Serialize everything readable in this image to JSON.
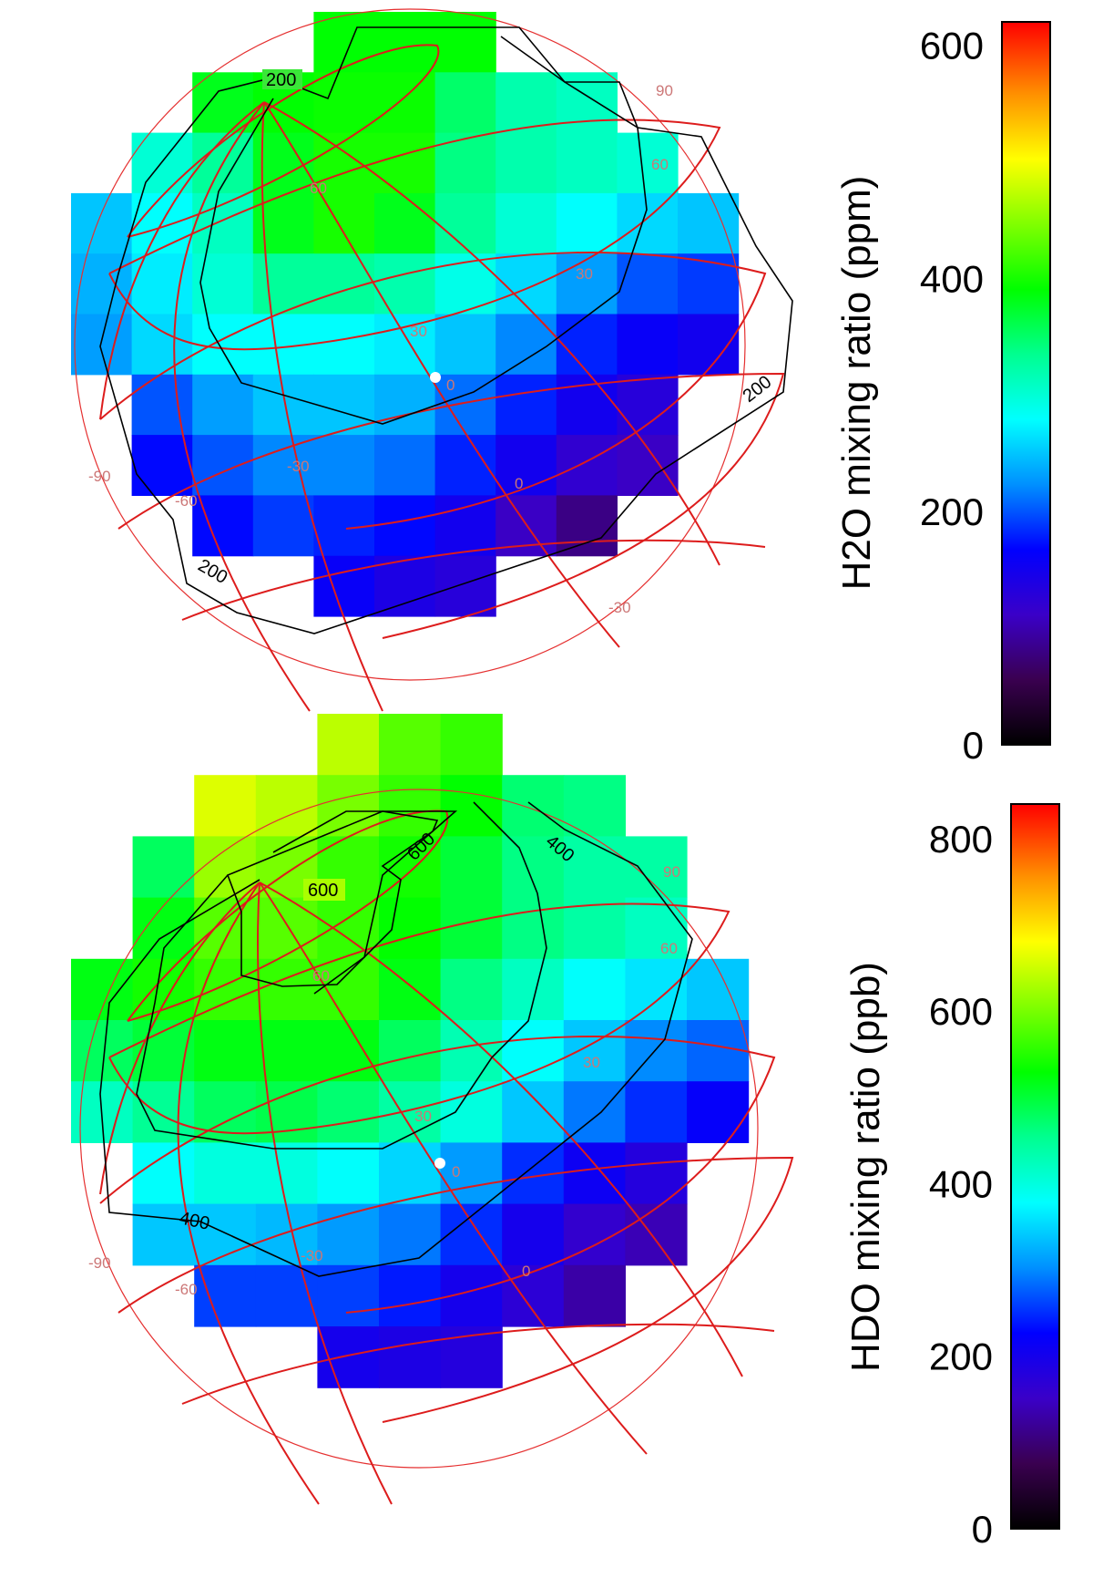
{
  "chart_data": [
    {
      "type": "heatmap",
      "colorbar_label": "H2O mixing ratio (ppm)",
      "colorbar_range": [
        0,
        620
      ],
      "colorbar_ticks": [
        "0",
        "200",
        "400",
        "600"
      ],
      "colorbar_tick_values": [
        0,
        200,
        400,
        600
      ],
      "contour_levels": [
        200
      ],
      "contour_labels": [
        "200",
        "200",
        "200"
      ],
      "grid_labels": [
        "90",
        "60",
        "60",
        "30",
        "30",
        "0",
        "-30",
        "0",
        "-90",
        "-60",
        "-30"
      ],
      "rows": [
        [
          null,
          null,
          null,
          null,
          390,
          390,
          390,
          null,
          null,
          null,
          null
        ],
        [
          null,
          null,
          380,
          390,
          395,
          395,
          350,
          320,
          310,
          null,
          null
        ],
        [
          null,
          300,
          330,
          380,
          400,
          400,
          340,
          320,
          310,
          300,
          null
        ],
        [
          250,
          280,
          310,
          380,
          400,
          380,
          330,
          300,
          280,
          260,
          250
        ],
        [
          240,
          270,
          300,
          330,
          330,
          320,
          290,
          260,
          230,
          200,
          190
        ],
        [
          230,
          260,
          280,
          280,
          280,
          270,
          250,
          220,
          180,
          160,
          150
        ],
        [
          null,
          200,
          230,
          250,
          250,
          240,
          210,
          180,
          150,
          130,
          null
        ],
        [
          null,
          170,
          200,
          220,
          220,
          210,
          180,
          150,
          120,
          110,
          null
        ],
        [
          null,
          null,
          170,
          190,
          180,
          170,
          150,
          110,
          80,
          null,
          null
        ],
        [
          null,
          null,
          null,
          null,
          160,
          140,
          130,
          null,
          null,
          null,
          null
        ]
      ]
    },
    {
      "type": "heatmap",
      "colorbar_label": "HDO mixing ratio (ppb)",
      "colorbar_range": [
        0,
        840
      ],
      "colorbar_ticks": [
        "0",
        "200",
        "400",
        "600",
        "800"
      ],
      "colorbar_tick_values": [
        0,
        200,
        400,
        600,
        800
      ],
      "contour_levels": [
        400,
        600
      ],
      "contour_labels": [
        "600",
        "600",
        "400",
        "400"
      ],
      "grid_labels": [
        "90",
        "60",
        "60",
        "30",
        "30",
        "0",
        "-30",
        "0",
        "-90",
        "-60"
      ],
      "rows": [
        [
          null,
          null,
          null,
          null,
          640,
          580,
          560,
          null,
          null,
          null,
          null
        ],
        [
          null,
          null,
          660,
          640,
          600,
          560,
          530,
          470,
          460,
          null,
          null
        ],
        [
          null,
          480,
          620,
          600,
          560,
          540,
          500,
          460,
          440,
          440,
          null
        ],
        [
          null,
          520,
          580,
          580,
          560,
          530,
          500,
          460,
          440,
          420,
          null
        ],
        [
          520,
          540,
          560,
          560,
          560,
          520,
          460,
          420,
          380,
          360,
          340
        ],
        [
          480,
          500,
          520,
          520,
          520,
          480,
          430,
          380,
          340,
          300,
          280
        ],
        [
          420,
          450,
          480,
          490,
          470,
          440,
          400,
          340,
          290,
          250,
          220
        ],
        [
          null,
          380,
          400,
          400,
          380,
          350,
          310,
          250,
          210,
          180,
          null
        ],
        [
          null,
          340,
          340,
          330,
          310,
          290,
          250,
          200,
          160,
          140,
          null
        ],
        [
          null,
          null,
          260,
          260,
          260,
          240,
          200,
          170,
          130,
          null,
          null
        ],
        [
          null,
          null,
          null,
          null,
          200,
          190,
          180,
          null,
          null,
          null,
          null
        ]
      ]
    }
  ]
}
